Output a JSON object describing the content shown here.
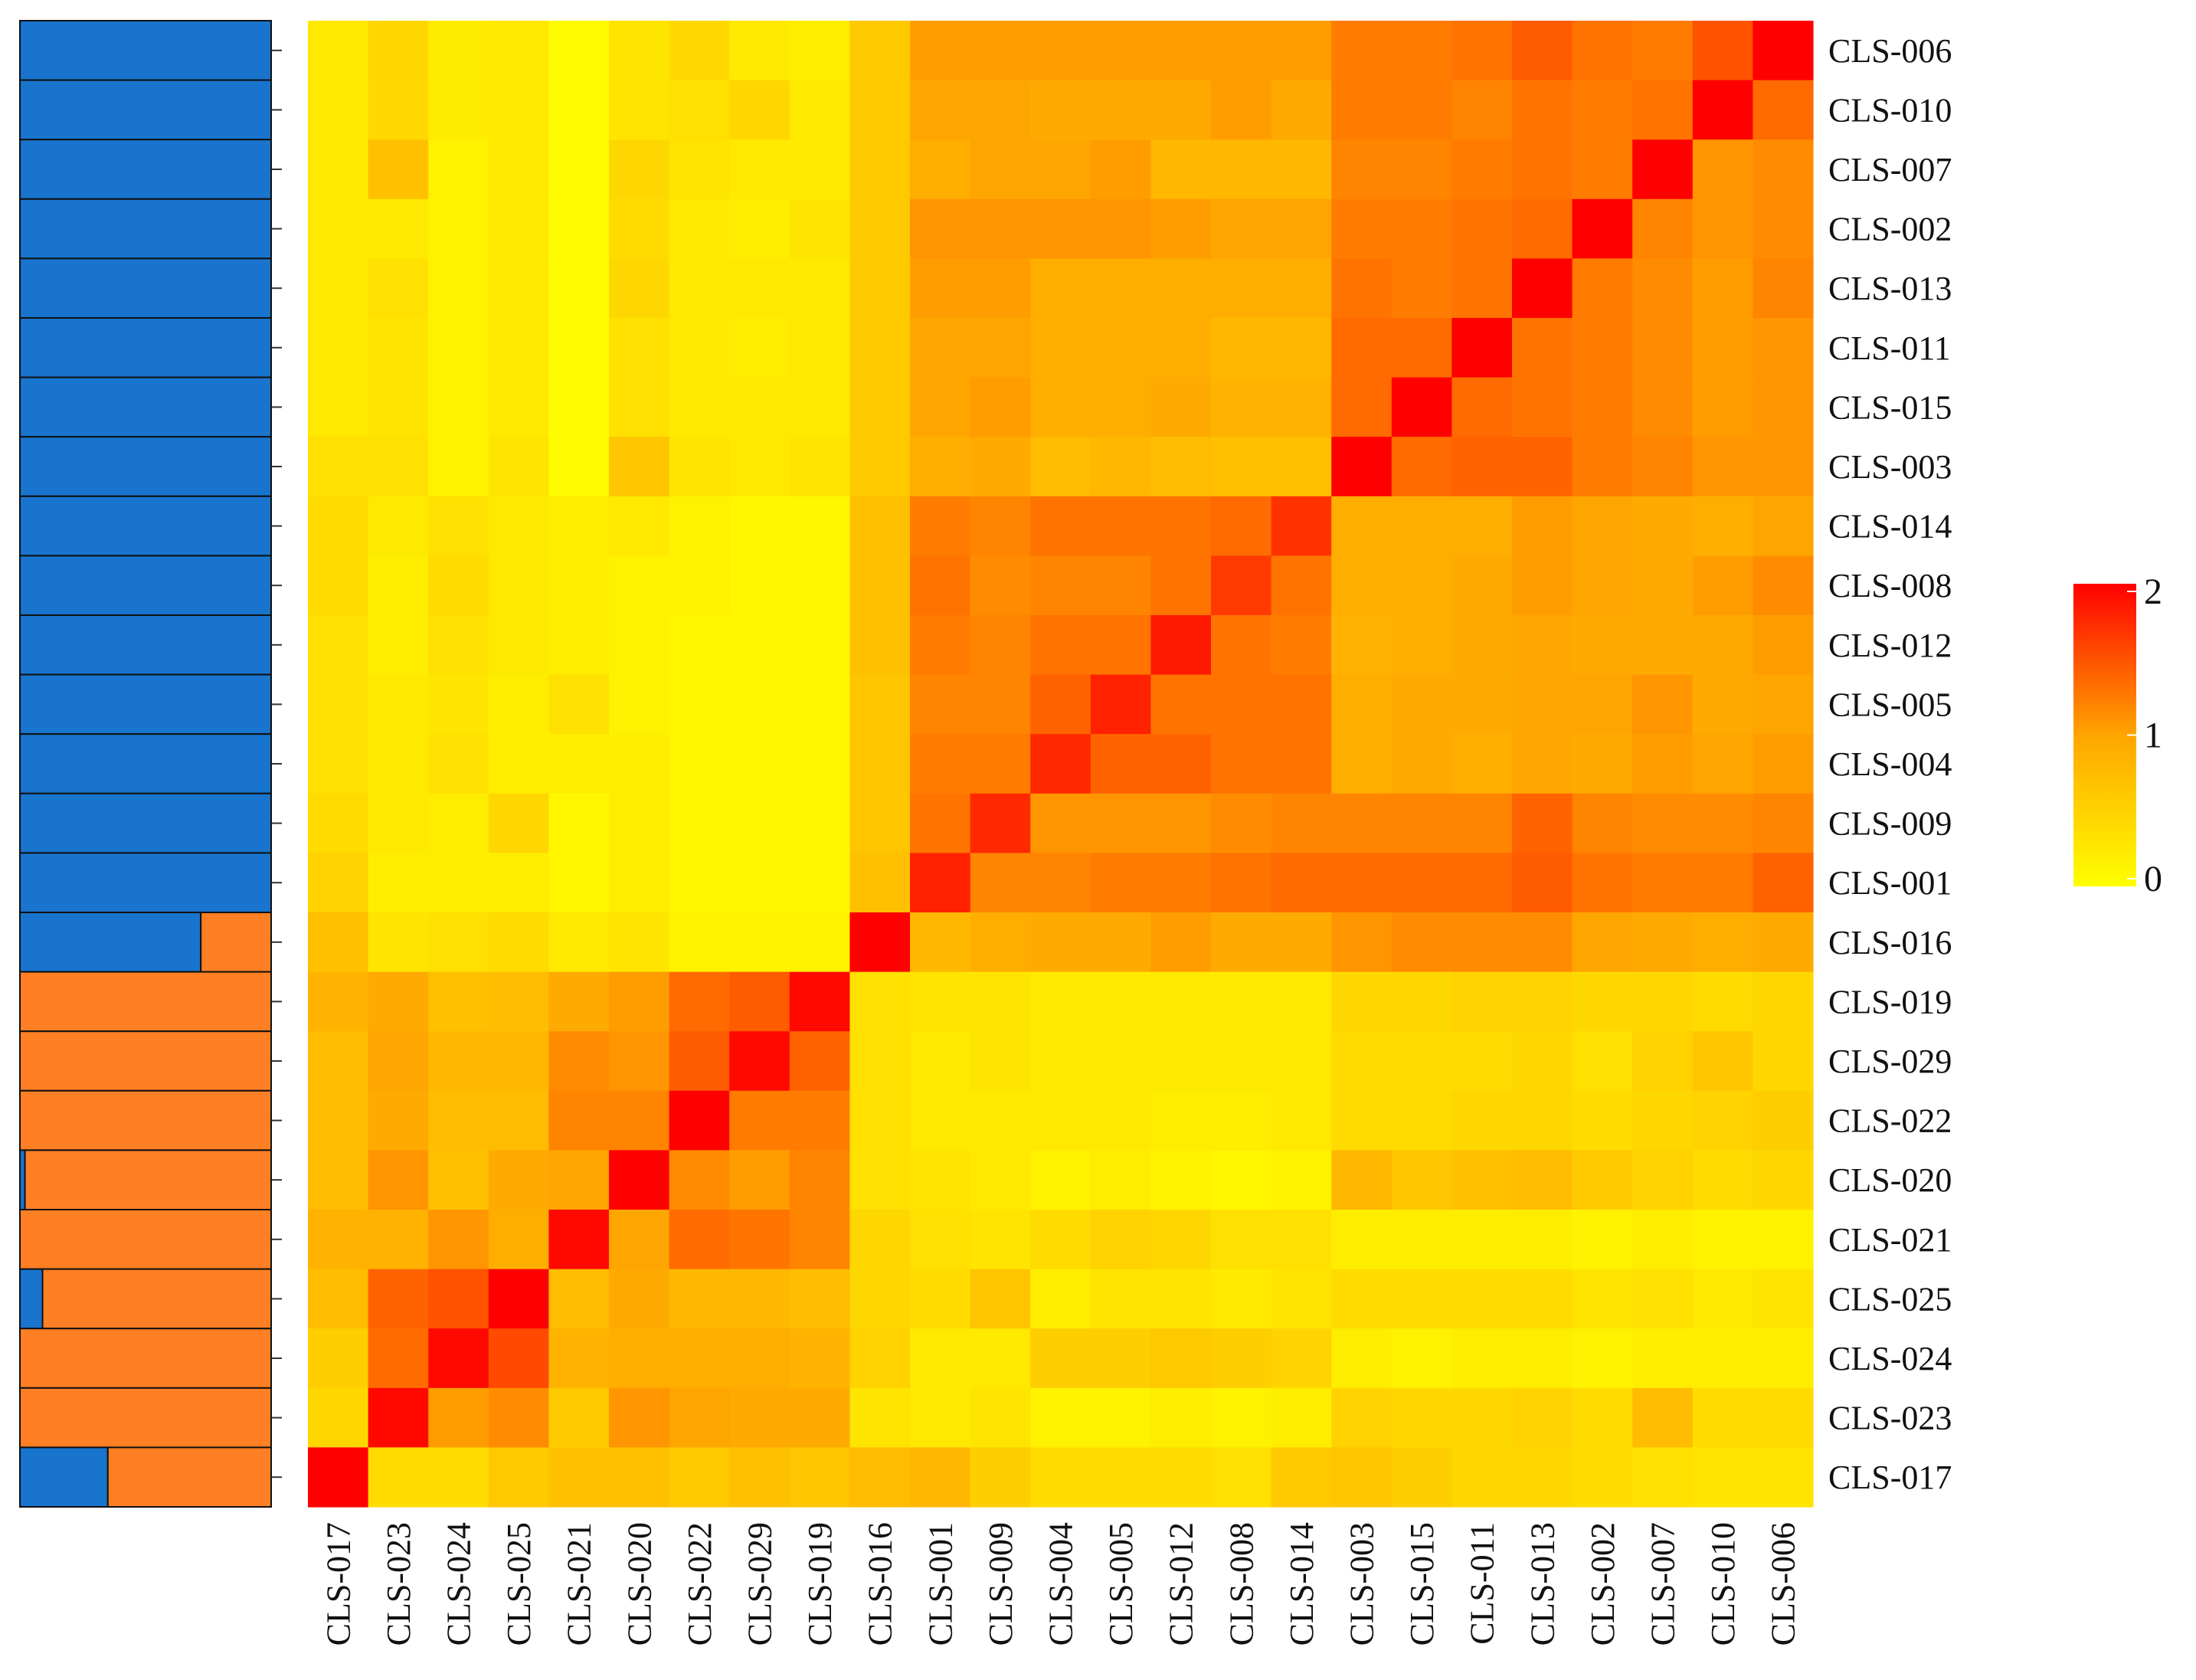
{
  "chart_data": [
    {
      "type": "bar",
      "orientation": "horizontal",
      "stacked": true,
      "normalized": true,
      "rows": [
        "CLS-006",
        "CLS-010",
        "CLS-007",
        "CLS-002",
        "CLS-013",
        "CLS-011",
        "CLS-015",
        "CLS-003",
        "CLS-014",
        "CLS-008",
        "CLS-012",
        "CLS-005",
        "CLS-004",
        "CLS-009",
        "CLS-001",
        "CLS-016",
        "CLS-019",
        "CLS-029",
        "CLS-022",
        "CLS-020",
        "CLS-021",
        "CLS-025",
        "CLS-024",
        "CLS-023",
        "CLS-017"
      ],
      "series": [
        {
          "color": "#1874cd",
          "values": [
            1,
            1,
            1,
            1,
            1,
            1,
            1,
            1,
            1,
            1,
            1,
            1,
            1,
            1,
            1,
            0.72,
            0,
            0,
            0,
            0.02,
            0,
            0.09,
            0,
            0,
            0.35
          ]
        },
        {
          "color": "#ff7f24",
          "values": [
            0,
            0,
            0,
            0,
            0,
            0,
            0,
            0,
            0,
            0,
            0,
            0,
            0,
            0,
            0,
            0.28,
            1,
            1,
            1,
            0.98,
            1,
            0.91,
            1,
            1,
            0.65
          ]
        }
      ]
    },
    {
      "type": "heatmap",
      "rows": [
        "CLS-006",
        "CLS-010",
        "CLS-007",
        "CLS-002",
        "CLS-013",
        "CLS-011",
        "CLS-015",
        "CLS-003",
        "CLS-014",
        "CLS-008",
        "CLS-012",
        "CLS-005",
        "CLS-004",
        "CLS-009",
        "CLS-001",
        "CLS-016",
        "CLS-019",
        "CLS-029",
        "CLS-022",
        "CLS-020",
        "CLS-021",
        "CLS-025",
        "CLS-024",
        "CLS-023",
        "CLS-017"
      ],
      "columns": [
        "CLS-017",
        "CLS-023",
        "CLS-024",
        "CLS-025",
        "CLS-021",
        "CLS-020",
        "CLS-022",
        "CLS-029",
        "CLS-019",
        "CLS-016",
        "CLS-001",
        "CLS-009",
        "CLS-004",
        "CLS-005",
        "CLS-012",
        "CLS-008",
        "CLS-014",
        "CLS-003",
        "CLS-015",
        "CLS-011",
        "CLS-013",
        "CLS-002",
        "CLS-007",
        "CLS-010",
        "CLS-006"
      ],
      "values": [
        [
          0.25,
          0.45,
          0.22,
          0.25,
          0.05,
          0.3,
          0.42,
          0.25,
          0.2,
          0.6,
          1.05,
          1.05,
          1.05,
          1.05,
          1.05,
          1.05,
          1.05,
          1.25,
          1.25,
          1.3,
          1.45,
          1.3,
          1.25,
          1.5,
          2
        ],
        [
          0.25,
          0.42,
          0.22,
          0.25,
          0.05,
          0.3,
          0.35,
          0.45,
          0.25,
          0.6,
          1.0,
          1.0,
          0.95,
          0.95,
          0.95,
          1.05,
          0.95,
          1.25,
          1.25,
          1.2,
          1.3,
          1.25,
          1.3,
          2,
          1.35
        ],
        [
          0.25,
          0.7,
          0.15,
          0.25,
          0.05,
          0.45,
          0.3,
          0.25,
          0.25,
          0.6,
          0.9,
          1.0,
          1.0,
          1.05,
          0.8,
          0.8,
          0.8,
          1.2,
          1.2,
          1.25,
          1.3,
          1.25,
          2,
          1.1,
          1.15
        ],
        [
          0.25,
          0.25,
          0.15,
          0.25,
          0.05,
          0.4,
          0.25,
          0.2,
          0.3,
          0.6,
          1.1,
          1.1,
          1.1,
          1.1,
          1.05,
          1.0,
          1.0,
          1.25,
          1.25,
          1.3,
          1.35,
          2,
          1.2,
          1.1,
          1.15
        ],
        [
          0.25,
          0.35,
          0.15,
          0.25,
          0.05,
          0.45,
          0.25,
          0.25,
          0.25,
          0.6,
          1.05,
          1.05,
          0.9,
          0.9,
          0.9,
          0.9,
          0.9,
          1.3,
          1.25,
          1.3,
          2,
          1.25,
          1.15,
          1.05,
          1.2
        ],
        [
          0.25,
          0.3,
          0.15,
          0.25,
          0.05,
          0.35,
          0.25,
          0.2,
          0.25,
          0.6,
          1.0,
          1.0,
          0.9,
          0.9,
          0.9,
          0.8,
          0.8,
          1.35,
          1.35,
          2,
          1.3,
          1.25,
          1.15,
          1.05,
          1.1
        ],
        [
          0.25,
          0.3,
          0.15,
          0.25,
          0.05,
          0.35,
          0.25,
          0.25,
          0.25,
          0.6,
          1.0,
          1.05,
          0.9,
          0.9,
          0.95,
          0.85,
          0.85,
          1.35,
          2,
          1.35,
          1.3,
          1.25,
          1.15,
          1.05,
          1.1
        ],
        [
          0.35,
          0.35,
          0.15,
          0.3,
          0.05,
          0.65,
          0.3,
          0.25,
          0.3,
          0.6,
          0.9,
          0.95,
          0.75,
          0.8,
          0.75,
          0.7,
          0.7,
          2,
          1.35,
          1.4,
          1.4,
          1.25,
          1.2,
          1.1,
          1.1
        ],
        [
          0.4,
          0.25,
          0.35,
          0.25,
          0.2,
          0.25,
          0.15,
          0.1,
          0.1,
          0.7,
          1.25,
          1.2,
          1.3,
          1.3,
          1.3,
          1.35,
          1.7,
          0.9,
          0.9,
          0.9,
          1.05,
          1.0,
          0.95,
          0.9,
          1.0
        ],
        [
          0.4,
          0.2,
          0.4,
          0.25,
          0.2,
          0.15,
          0.15,
          0.1,
          0.1,
          0.7,
          1.3,
          1.15,
          1.2,
          1.2,
          1.3,
          1.65,
          1.3,
          0.9,
          0.9,
          0.95,
          1.05,
          1.0,
          0.95,
          1.05,
          1.15
        ],
        [
          0.35,
          0.2,
          0.35,
          0.25,
          0.2,
          0.15,
          0.1,
          0.1,
          0.1,
          0.7,
          1.25,
          1.2,
          1.3,
          1.3,
          1.85,
          1.3,
          1.25,
          0.85,
          0.9,
          0.95,
          1.0,
          0.95,
          0.95,
          0.95,
          1.05
        ],
        [
          0.35,
          0.25,
          0.3,
          0.2,
          0.35,
          0.15,
          0.1,
          0.1,
          0.1,
          0.65,
          1.2,
          1.2,
          1.4,
          1.8,
          1.3,
          1.3,
          1.3,
          0.9,
          0.95,
          0.95,
          1.0,
          1.0,
          1.1,
          0.95,
          1.0
        ],
        [
          0.35,
          0.25,
          0.35,
          0.2,
          0.2,
          0.2,
          0.1,
          0.1,
          0.1,
          0.65,
          1.25,
          1.25,
          1.75,
          1.4,
          1.4,
          1.3,
          1.3,
          0.9,
          0.95,
          0.9,
          1.0,
          0.95,
          1.05,
          1.0,
          1.05
        ],
        [
          0.4,
          0.25,
          0.2,
          0.45,
          0.1,
          0.2,
          0.1,
          0.1,
          0.1,
          0.65,
          1.3,
          1.75,
          1.1,
          1.1,
          1.1,
          1.15,
          1.2,
          1.2,
          1.2,
          1.2,
          1.4,
          1.2,
          1.15,
          1.15,
          1.2
        ],
        [
          0.5,
          0.2,
          0.2,
          0.2,
          0.1,
          0.2,
          0.1,
          0.1,
          0.1,
          0.7,
          1.8,
          1.2,
          1.2,
          1.25,
          1.25,
          1.3,
          1.35,
          1.35,
          1.35,
          1.35,
          1.45,
          1.3,
          1.25,
          1.25,
          1.4
        ],
        [
          0.7,
          0.3,
          0.35,
          0.4,
          0.25,
          0.3,
          0.15,
          0.15,
          0.15,
          2,
          0.8,
          0.9,
          0.95,
          0.95,
          1.05,
          0.95,
          0.95,
          1.1,
          1.15,
          1.15,
          1.15,
          1.0,
          0.95,
          0.9,
          0.95
        ],
        [
          0.85,
          0.95,
          0.7,
          0.75,
          0.95,
          1.05,
          1.35,
          1.45,
          1.95,
          0.35,
          0.3,
          0.3,
          0.25,
          0.25,
          0.25,
          0.25,
          0.25,
          0.45,
          0.45,
          0.5,
          0.5,
          0.45,
          0.45,
          0.4,
          0.45
        ],
        [
          0.75,
          1.0,
          0.8,
          0.8,
          1.15,
          1.1,
          1.45,
          1.95,
          1.4,
          0.35,
          0.25,
          0.3,
          0.25,
          0.25,
          0.25,
          0.25,
          0.25,
          0.4,
          0.4,
          0.4,
          0.45,
          0.35,
          0.5,
          0.65,
          0.45
        ],
        [
          0.75,
          0.95,
          0.75,
          0.75,
          1.2,
          1.2,
          2,
          1.25,
          1.25,
          0.35,
          0.25,
          0.25,
          0.25,
          0.25,
          0.2,
          0.2,
          0.25,
          0.4,
          0.4,
          0.45,
          0.45,
          0.4,
          0.45,
          0.5,
          0.55
        ],
        [
          0.75,
          1.1,
          0.7,
          0.95,
          1.0,
          2,
          1.15,
          1.05,
          1.2,
          0.35,
          0.3,
          0.25,
          0.15,
          0.2,
          0.15,
          0.1,
          0.15,
          0.8,
          0.65,
          0.7,
          0.75,
          0.6,
          0.5,
          0.4,
          0.45
        ],
        [
          0.85,
          0.85,
          1.1,
          0.9,
          1.95,
          1.0,
          1.35,
          1.3,
          1.2,
          0.45,
          0.35,
          0.3,
          0.4,
          0.5,
          0.45,
          0.35,
          0.35,
          0.2,
          0.2,
          0.2,
          0.2,
          0.15,
          0.2,
          0.15,
          0.15
        ],
        [
          0.75,
          1.4,
          1.5,
          2,
          0.75,
          0.95,
          0.8,
          0.8,
          0.75,
          0.45,
          0.4,
          0.65,
          0.2,
          0.3,
          0.3,
          0.25,
          0.3,
          0.4,
          0.4,
          0.4,
          0.4,
          0.3,
          0.35,
          0.25,
          0.3
        ],
        [
          0.55,
          1.35,
          1.95,
          1.55,
          0.85,
          0.9,
          0.9,
          0.9,
          0.85,
          0.5,
          0.25,
          0.25,
          0.55,
          0.55,
          0.6,
          0.55,
          0.5,
          0.2,
          0.15,
          0.2,
          0.2,
          0.15,
          0.2,
          0.2,
          0.2
        ],
        [
          0.45,
          1.95,
          1.05,
          1.15,
          0.6,
          1.1,
          1.0,
          0.95,
          0.95,
          0.3,
          0.25,
          0.3,
          0.15,
          0.15,
          0.2,
          0.15,
          0.2,
          0.5,
          0.45,
          0.45,
          0.5,
          0.4,
          0.75,
          0.4,
          0.4
        ],
        [
          2,
          0.4,
          0.4,
          0.6,
          0.7,
          0.7,
          0.6,
          0.7,
          0.65,
          0.75,
          0.8,
          0.55,
          0.4,
          0.4,
          0.4,
          0.35,
          0.6,
          0.65,
          0.55,
          0.45,
          0.45,
          0.4,
          0.35,
          0.3,
          0.3
        ]
      ],
      "colorbar": {
        "min": 0,
        "max": 2,
        "ticks": [
          "0",
          "1",
          "2"
        ],
        "colors": [
          "#ffff00",
          "#ffa500",
          "#ff0000"
        ]
      }
    }
  ]
}
